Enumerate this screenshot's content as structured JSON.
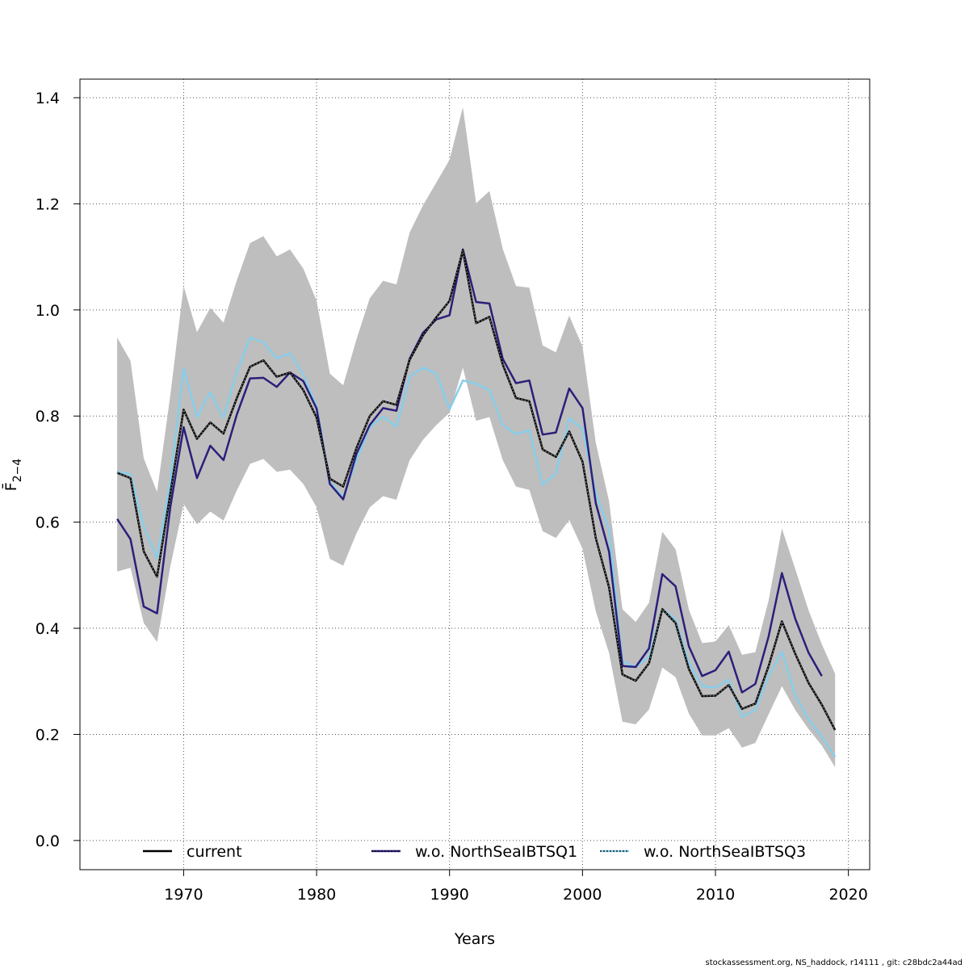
{
  "chart_data": {
    "type": "line",
    "xlabel": "Years",
    "ylabel": "F̄",
    "ylabel_subscript": "2−4",
    "xlim": [
      1962.2,
      2021.6
    ],
    "ylim": [
      -0.055,
      1.435
    ],
    "xticks": [
      1970,
      1980,
      1990,
      2000,
      2010,
      2020
    ],
    "yticks": [
      0.0,
      0.2,
      0.4,
      0.6,
      0.8,
      1.0,
      1.2,
      1.4
    ],
    "xtick_labels": [
      "1970",
      "1980",
      "1990",
      "2000",
      "2010",
      "2020"
    ],
    "ytick_labels": [
      "0.0",
      "0.2",
      "0.4",
      "0.6",
      "0.8",
      "1.0",
      "1.2",
      "1.4"
    ],
    "grid": true,
    "legend_position": "bottom",
    "x": [
      1965,
      1966,
      1967,
      1968,
      1969,
      1970,
      1971,
      1972,
      1973,
      1974,
      1975,
      1976,
      1977,
      1978,
      1979,
      1980,
      1981,
      1982,
      1983,
      1984,
      1985,
      1986,
      1987,
      1988,
      1989,
      1990,
      1991,
      1992,
      1993,
      1994,
      1995,
      1996,
      1997,
      1998,
      1999,
      2000,
      2001,
      2002,
      2003,
      2004,
      2005,
      2006,
      2007,
      2008,
      2009,
      2010,
      2011,
      2012,
      2013,
      2014,
      2015,
      2016,
      2017,
      2018,
      2019
    ],
    "confidence_band": {
      "color": "#bebebe",
      "upper": [
        0.948,
        0.904,
        0.72,
        0.657,
        0.84,
        1.045,
        0.958,
        1.004,
        0.976,
        1.056,
        1.126,
        1.139,
        1.101,
        1.114,
        1.078,
        1.017,
        0.88,
        0.858,
        0.945,
        1.022,
        1.055,
        1.048,
        1.146,
        1.197,
        1.24,
        1.283,
        1.382,
        1.201,
        1.224,
        1.115,
        1.045,
        1.042,
        0.933,
        0.92,
        0.989,
        0.931,
        0.75,
        0.639,
        0.436,
        0.412,
        0.448,
        0.582,
        0.549,
        0.435,
        0.372,
        0.375,
        0.406,
        0.35,
        0.355,
        0.453,
        0.588,
        0.512,
        0.434,
        0.37,
        0.314
      ],
      "lower": [
        0.507,
        0.514,
        0.41,
        0.374,
        0.517,
        0.634,
        0.596,
        0.62,
        0.603,
        0.66,
        0.71,
        0.719,
        0.695,
        0.699,
        0.672,
        0.628,
        0.531,
        0.518,
        0.579,
        0.628,
        0.649,
        0.642,
        0.717,
        0.755,
        0.783,
        0.806,
        0.891,
        0.791,
        0.798,
        0.717,
        0.667,
        0.661,
        0.583,
        0.57,
        0.604,
        0.55,
        0.432,
        0.353,
        0.224,
        0.219,
        0.247,
        0.326,
        0.308,
        0.239,
        0.198,
        0.198,
        0.212,
        0.175,
        0.184,
        0.238,
        0.291,
        0.246,
        0.21,
        0.179,
        0.138
      ]
    },
    "series": [
      {
        "name": "current",
        "color": "#000000",
        "values": [
          0.693,
          0.683,
          0.545,
          0.497,
          0.655,
          0.812,
          0.757,
          0.788,
          0.767,
          0.834,
          0.893,
          0.905,
          0.874,
          0.882,
          0.849,
          0.797,
          0.682,
          0.667,
          0.74,
          0.8,
          0.828,
          0.821,
          0.906,
          0.952,
          0.986,
          1.017,
          1.112,
          0.975,
          0.987,
          0.897,
          0.834,
          0.828,
          0.737,
          0.723,
          0.771,
          0.714,
          0.57,
          0.477,
          0.313,
          0.301,
          0.334,
          0.436,
          0.41,
          0.323,
          0.272,
          0.273,
          0.293,
          0.248,
          0.258,
          0.329,
          0.413,
          0.352,
          0.297,
          0.256,
          0.208
        ]
      },
      {
        "name": "w.o. NorthSeaIBTSQ1",
        "color": "#2b1f7a",
        "values": [
          0.606,
          0.568,
          0.441,
          0.428,
          0.629,
          0.779,
          0.683,
          0.744,
          0.717,
          0.803,
          0.871,
          0.872,
          0.855,
          0.882,
          0.866,
          0.814,
          0.672,
          0.643,
          0.729,
          0.783,
          0.815,
          0.81,
          0.908,
          0.957,
          0.982,
          0.99,
          1.114,
          1.015,
          1.012,
          0.908,
          0.862,
          0.867,
          0.765,
          0.769,
          0.852,
          0.815,
          0.636,
          0.544,
          0.329,
          0.327,
          0.362,
          0.502,
          0.479,
          0.366,
          0.31,
          0.321,
          0.356,
          0.279,
          0.295,
          0.385,
          0.504,
          0.418,
          0.354,
          0.31,
          null
        ]
      },
      {
        "name": "w.o. NorthSeaIBTSQ3",
        "color": "#87ceeb",
        "values": [
          0.695,
          0.69,
          0.591,
          0.532,
          0.679,
          0.89,
          0.798,
          0.845,
          0.797,
          0.882,
          0.948,
          0.939,
          0.909,
          0.918,
          0.878,
          0.819,
          0.676,
          0.647,
          0.717,
          0.779,
          0.799,
          0.78,
          0.874,
          0.891,
          0.88,
          0.813,
          0.867,
          0.861,
          0.849,
          0.783,
          0.766,
          0.773,
          0.67,
          0.691,
          0.796,
          0.776,
          0.655,
          0.586,
          0.338,
          0.327,
          0.346,
          0.436,
          0.417,
          0.335,
          0.291,
          0.288,
          0.303,
          0.233,
          0.246,
          0.311,
          0.356,
          0.273,
          0.229,
          0.195,
          0.158
        ]
      }
    ]
  },
  "legend": {
    "items": [
      {
        "label": "current",
        "color": "#000000"
      },
      {
        "label": "w.o. NorthSeaIBTSQ1",
        "color": "#2b1f7a"
      },
      {
        "label": "w.o. NorthSeaIBTSQ3",
        "color": "#87ceeb"
      }
    ]
  },
  "footer": {
    "text": "stockassessment.org, NS_haddock, r14111 , git: c28bdc2a44ad"
  }
}
